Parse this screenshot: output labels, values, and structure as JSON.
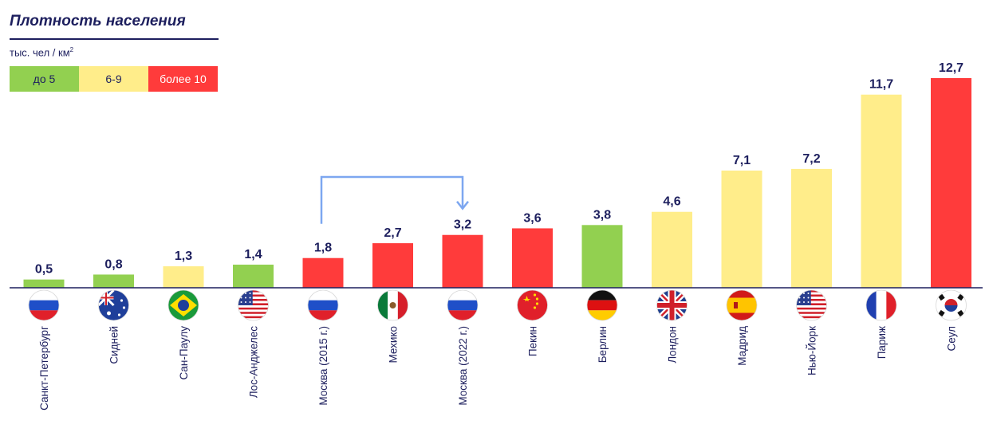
{
  "header": {
    "title": "Плотность населения",
    "unit": "тыс. чел / км",
    "unit_sup": "2"
  },
  "legend": [
    {
      "label": "до 5",
      "color": "#92d050",
      "text_color": "#1d1f5e"
    },
    {
      "label": "6-9",
      "color": "#ffed8a",
      "text_color": "#1d1f5e"
    },
    {
      "label": "более 10",
      "color": "#ff3b3b",
      "text_color": "#ffffff"
    }
  ],
  "colors": {
    "green": "#92d050",
    "yellow": "#ffed8a",
    "red": "#ff3b3b",
    "axis": "#1d1f5e",
    "arrow": "#7da7f0"
  },
  "chart_data": {
    "type": "bar",
    "categories": [
      "Санкт-Петербург",
      "Сидней",
      "Сан-Паулу",
      "Лос-Анджелес",
      "Москва (2015 г.)",
      "Мехико",
      "Москва (2022 г.)",
      "Пекин",
      "Берлин",
      "Лондон",
      "Мадрид",
      "Нью-Йорк",
      "Париж",
      "Сеул"
    ],
    "values": [
      0.5,
      0.8,
      1.3,
      1.4,
      1.8,
      2.7,
      3.2,
      3.6,
      3.8,
      4.6,
      7.1,
      7.2,
      11.7,
      12.7
    ],
    "value_labels": [
      "0,5",
      "0,8",
      "1,3",
      "1,4",
      "1,8",
      "2,7",
      "3,2",
      "3,6",
      "3,8",
      "4,6",
      "7,1",
      "7,2",
      "11,7",
      "12,7"
    ],
    "bar_colors": [
      "green",
      "green",
      "yellow",
      "green",
      "red",
      "red",
      "red",
      "red",
      "green",
      "yellow",
      "yellow",
      "yellow",
      "yellow",
      "red"
    ],
    "flags": [
      "russia-flag-icon",
      "australia-flag-icon",
      "brazil-flag-icon",
      "usa-flag-icon",
      "russia-flag-icon",
      "mexico-flag-icon",
      "russia-flag-icon",
      "china-flag-icon",
      "germany-flag-icon",
      "uk-flag-icon",
      "spain-flag-icon",
      "usa-flag-icon",
      "france-flag-icon",
      "south-korea-flag-icon"
    ],
    "ylim": [
      0,
      12.7
    ],
    "grid": false,
    "annotation": {
      "type": "arrow",
      "from_index": 4,
      "to_index": 6
    }
  }
}
